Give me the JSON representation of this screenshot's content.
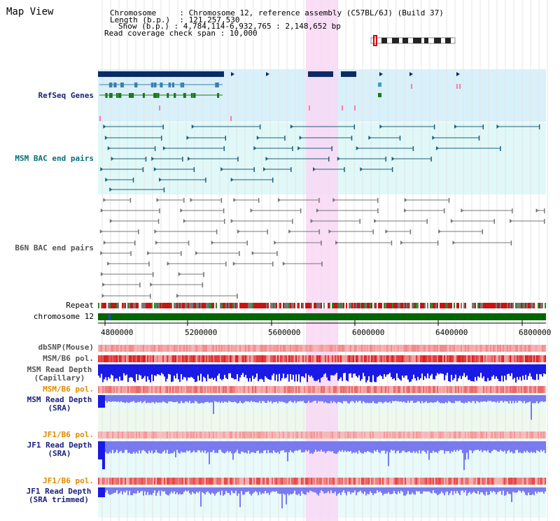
{
  "title": "Map View",
  "info": {
    "chromosome_label": "Chromosome",
    "chromosome_value": "Chromosome 12, reference assembly (C57BL/6J) (Build 37)",
    "length_label": "Length (b.p.)",
    "length_value": "121,257,530",
    "show_label": "Show (b.p.)",
    "show_value": "4,784,114-6,932,765 : 2,148,652 bp",
    "coverage_label": "Read coverage check span",
    "coverage_value": "10,000"
  },
  "tracks": {
    "refseq": "RefSeq Genes",
    "msm_bac": "MSM BAC end pairs",
    "b6n_bac": "B6N BAC end pairs",
    "repeat": "Repeat",
    "chromosome": "chromosome 12",
    "dbsnp": "dbSNP(Mouse)",
    "msm_b6_pol_1": "MSM/B6 pol.",
    "msm_depth_cap_1": "MSM Read Depth",
    "msm_depth_cap_2": "(Capillary)",
    "msm_b6_pol_2": "MSM/B6 pol.",
    "msm_depth_sra_1": "MSM Read Depth",
    "msm_depth_sra_2": "(SRA)",
    "jf1_b6_pol_1": "JF1/B6 pol.",
    "jf1_depth_sra_1": "JF1 Read Depth",
    "jf1_depth_sra_2": "(SRA)",
    "jf1_b6_pol_2": "JF1/B6 pol.",
    "jf1_depth_trim_1": "JF1 Read Depth",
    "jf1_depth_trim_2": "(SRA trimmed)"
  },
  "axis": {
    "ticks": [
      "4800000",
      "5200000",
      "5600000",
      "6000000",
      "6400000",
      "6800000"
    ]
  },
  "colors": {
    "highlight": "#f8d8f4",
    "refseq_bg": "#d8f0fa",
    "bac_bg": "#e0f8f8",
    "lower_bg": "#e8fafa",
    "navy": "#0c2a66",
    "teal": "#1a6080",
    "gray_line": "#777777",
    "chrom_green": "#006600",
    "depth_blue": "#1a1ae6",
    "depth_light": "#7a7af0"
  }
}
